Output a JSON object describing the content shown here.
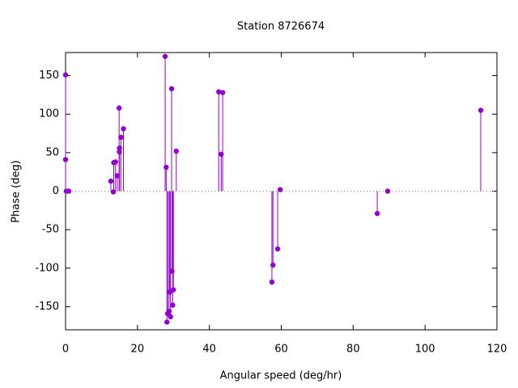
{
  "chart_data": {
    "type": "impulse",
    "title": "Station 8726674",
    "x_label": "Angular speed (deg/hr)",
    "y_label": "Phase (deg)",
    "x": [
      0,
      0,
      0.2,
      0.9,
      12.6,
      13.3,
      13.4,
      13.9,
      14.4,
      14.9,
      14.96,
      15.0,
      15.4,
      16.1,
      27.7,
      28.0,
      28.2,
      28.4,
      28.8,
      29.0,
      29.2,
      29.5,
      29.6,
      29.8,
      30.0,
      30.8,
      42.6,
      43.3,
      43.7,
      57.4,
      57.7,
      59.0,
      59.7,
      86.7,
      89.6,
      115.5
    ],
    "values": [
      151,
      41,
      0,
      0,
      13,
      -1,
      37,
      38,
      20,
      108,
      51,
      56,
      70,
      81,
      175,
      31,
      -170,
      -159,
      -156,
      -131,
      -163,
      133,
      -104,
      -148,
      -128,
      52,
      129,
      48,
      128,
      -118,
      -96,
      -75,
      2,
      -29,
      0,
      105
    ],
    "color": "#9400d3",
    "xlim": [
      0,
      120
    ],
    "xticks": [
      0,
      20,
      40,
      60,
      80,
      100,
      120
    ],
    "ylim": [
      -180,
      180
    ],
    "yticks": [
      -150,
      -100,
      -50,
      0,
      50,
      100,
      150
    ],
    "zero_line": true
  }
}
